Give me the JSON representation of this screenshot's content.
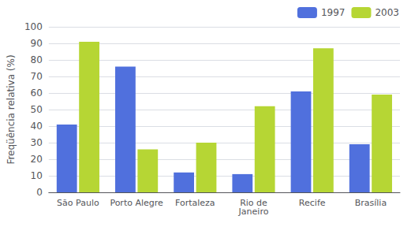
{
  "chart_data": {
    "type": "bar",
    "categories": [
      "São Paulo",
      "Porto Alegre",
      "Fortaleza",
      "Rio de\nJaneiro",
      "Recife",
      "Brasília"
    ],
    "series": [
      {
        "name": "1997",
        "values": [
          41,
          76,
          12,
          11,
          61,
          29
        ]
      },
      {
        "name": "2003",
        "values": [
          91,
          26,
          30,
          52,
          87,
          59
        ]
      }
    ],
    "ylabel": "Freqüência relativa (%)",
    "ylim": [
      0,
      100
    ],
    "yticks": [
      0,
      10,
      20,
      30,
      40,
      50,
      60,
      70,
      80,
      90,
      100
    ],
    "grid": true,
    "legend": "upper right"
  }
}
